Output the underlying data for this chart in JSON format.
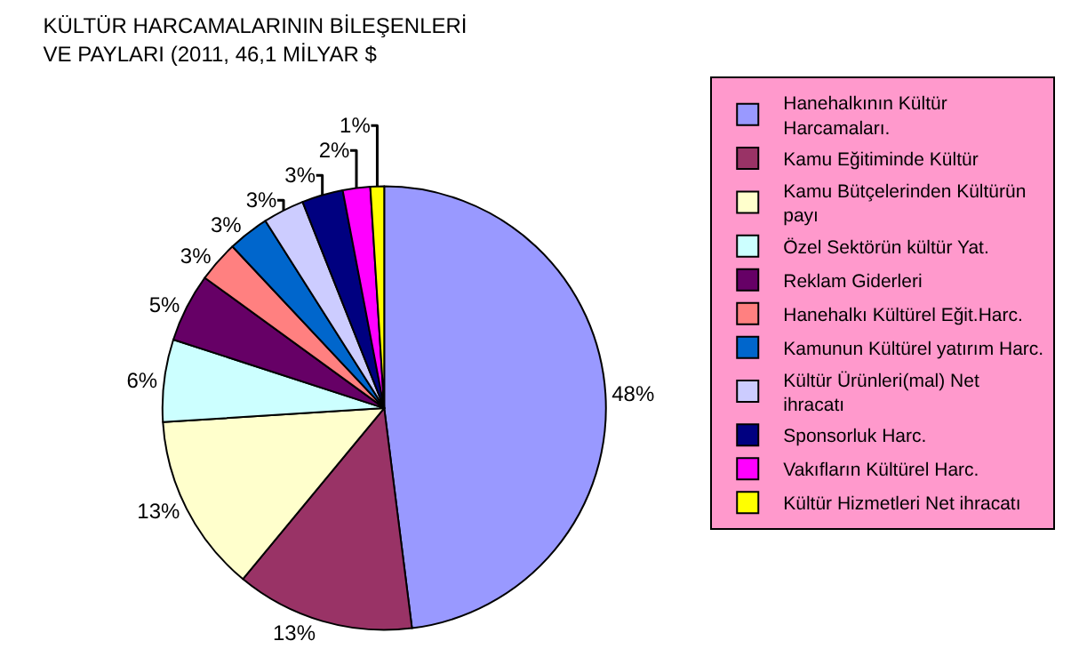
{
  "chart_data": {
    "type": "pie",
    "title": "KÜLTÜR HARCAMALARININ BİLEŞENLERİ VE PAYLARI (2011, 46,1 MİLYAR $",
    "categories": [
      "Hanehalkının Kültür Harcamaları.",
      "Kamu Eğitiminde Kültür",
      "Kamu Bütçelerinden Kültürün payı",
      "Özel Sektörün kültür Yat.",
      "Reklam Giderleri",
      "Hanehalkı Kültürel Eğit.Harc.",
      "Kamunun Kültürel yatırım Harc.",
      "Kültür Ürünleri(mal) Net ihracatı",
      "Sponsorluk Harc.",
      "Vakıfların Kültürel Harc.",
      "Kültür Hizmetleri Net ihracatı"
    ],
    "values": [
      48,
      13,
      13,
      6,
      5,
      3,
      3,
      3,
      3,
      2,
      1
    ],
    "value_labels": [
      "48%",
      "13%",
      "13%",
      "6%",
      "5%",
      "3%",
      "3%",
      "3%",
      "3%",
      "2%",
      "1%"
    ],
    "colors": [
      "#9999ff",
      "#993366",
      "#ffffcc",
      "#ccffff",
      "#660066",
      "#ff8080",
      "#0066cc",
      "#ccccff",
      "#000080",
      "#ff00ff",
      "#ffff00"
    ],
    "legend": "right"
  }
}
